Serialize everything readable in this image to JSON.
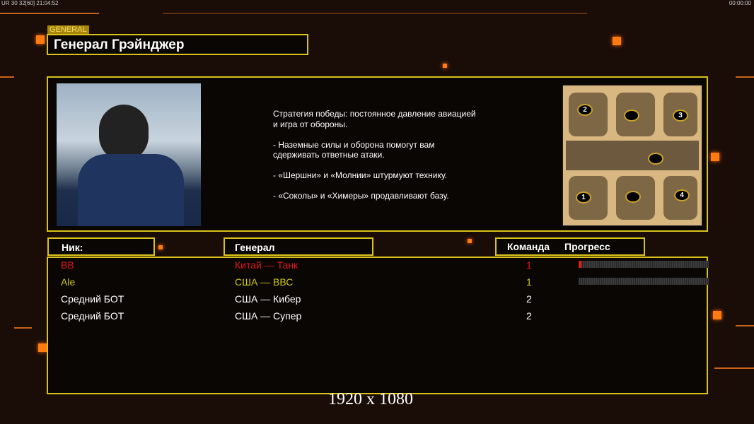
{
  "hud": {
    "left": "UR 30 32[60] 21:04:52",
    "right": "00:00:00"
  },
  "header": {
    "label": "GENERAL",
    "title": "Генерал Грэйнджер"
  },
  "description": "Стратегия победы: постоянное давление авиацией\n и игра от обороны.\n\n- Наземные силы и оборона помогут вам\n сдерживать ответные атаки.\n\n- «Шершни» и «Молнии» штурмуют технику.\n\n- «Соколы» и «Химеры» продавливают базу.",
  "map": {
    "start_positions": [
      "1",
      "2",
      "3",
      "4"
    ]
  },
  "table": {
    "headers": {
      "nick": "Ник:",
      "general": "Генерал",
      "team": "Команда",
      "progress": "Прогресс"
    },
    "rows": [
      {
        "nick": "BB",
        "general": "Китай — Танк",
        "team": "1",
        "progress": 2,
        "color": "#e01818"
      },
      {
        "nick": "Ale",
        "general": "США — ВВС",
        "team": "1",
        "progress": 0,
        "color": "#d0c820"
      },
      {
        "nick": "Средний БОТ",
        "general": "США — Кибер",
        "team": "2",
        "color": "#ffffff"
      },
      {
        "nick": "Средний БОТ",
        "general": "США — Супер",
        "team": "2",
        "color": "#ffffff"
      }
    ]
  },
  "resolution": "1920 x 1080",
  "colors": {
    "accent": "#d9c21c",
    "orange": "#ff7a10"
  }
}
